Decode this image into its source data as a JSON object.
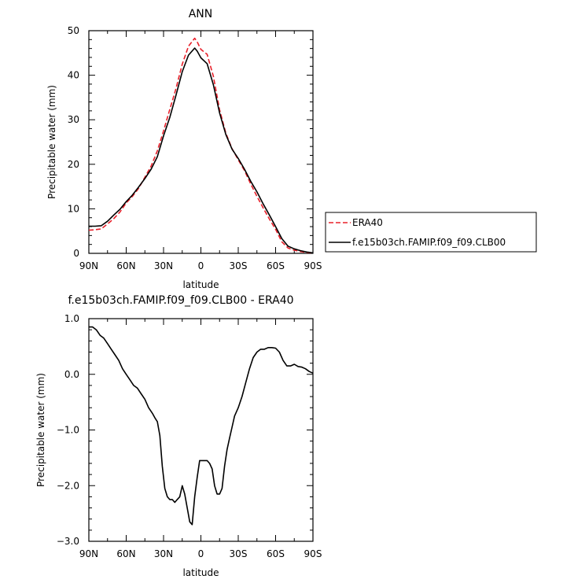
{
  "chart_data": [
    {
      "type": "line",
      "title": "ANN",
      "xlabel": "latitude",
      "ylabel": "Precipitable water (mm)",
      "xlim": [
        90,
        -90
      ],
      "ylim": [
        0,
        50
      ],
      "xticks": [
        90,
        60,
        30,
        0,
        -30,
        -60,
        -90
      ],
      "xtick_labels": [
        "90N",
        "60N",
        "30N",
        "0",
        "30S",
        "60S",
        "90S"
      ],
      "yticks": [
        0,
        10,
        20,
        30,
        40,
        50
      ],
      "ytick_labels": [
        "0",
        "10",
        "20",
        "30",
        "40",
        "50"
      ],
      "legend": {
        "position": "right"
      },
      "series": [
        {
          "name": "ERA40",
          "color": "#e8202a",
          "dash": "dashed",
          "x": [
            90,
            85,
            80,
            75,
            70,
            65,
            60,
            55,
            50,
            45,
            40,
            35,
            30,
            25,
            20,
            15,
            10,
            5,
            3,
            0,
            -5,
            -10,
            -15,
            -20,
            -25,
            -30,
            -35,
            -40,
            -45,
            -50,
            -55,
            -60,
            -65,
            -70,
            -75,
            -80,
            -85,
            -90
          ],
          "y": [
            5.2,
            5.3,
            5.5,
            6.6,
            7.8,
            9.3,
            11.3,
            12.8,
            14.6,
            17.1,
            19.6,
            23.0,
            27.5,
            32.3,
            37.0,
            42.5,
            46.5,
            48.3,
            47.5,
            45.8,
            44.7,
            39.8,
            32.2,
            27.0,
            23.5,
            21.0,
            18.6,
            15.6,
            12.8,
            10.2,
            7.7,
            5.4,
            2.6,
            1.2,
            0.7,
            0.4,
            0.2,
            0.1
          ]
        },
        {
          "name": "f.e15b03ch.FAMIP.f09_f09.CLB00",
          "color": "#000000",
          "dash": "solid",
          "x": [
            90,
            85,
            80,
            75,
            70,
            65,
            60,
            55,
            50,
            45,
            40,
            35,
            30,
            25,
            20,
            15,
            10,
            5,
            3,
            0,
            -5,
            -10,
            -15,
            -20,
            -25,
            -30,
            -35,
            -40,
            -45,
            -50,
            -55,
            -60,
            -65,
            -70,
            -75,
            -80,
            -85,
            -90
          ],
          "y": [
            6.1,
            6.1,
            6.2,
            7.2,
            8.6,
            9.9,
            11.6,
            13.1,
            14.9,
            16.8,
            18.9,
            21.7,
            26.4,
            30.5,
            35.5,
            40.8,
            44.5,
            46.1,
            45.4,
            43.9,
            42.6,
            37.9,
            31.5,
            26.7,
            23.4,
            21.3,
            18.9,
            16.2,
            13.8,
            11.1,
            8.6,
            6.0,
            3.3,
            1.6,
            1.0,
            0.6,
            0.3,
            0.1
          ]
        }
      ]
    },
    {
      "type": "line",
      "title": "f.e15b03ch.FAMIP.f09_f09.CLB00 - ERA40",
      "xlabel": "latitude",
      "ylabel": "Precipitable water (mm)",
      "xlim": [
        90,
        -90
      ],
      "ylim": [
        -3.0,
        1.0
      ],
      "xticks": [
        90,
        60,
        30,
        0,
        -30,
        -60,
        -90
      ],
      "xtick_labels": [
        "90N",
        "60N",
        "30N",
        "0",
        "30S",
        "60S",
        "90S"
      ],
      "yticks": [
        -3.0,
        -2.0,
        -1.0,
        0.0,
        1.0
      ],
      "ytick_labels": [
        "-3.0",
        "-2.0",
        "-1.0",
        "0.0",
        "1.0"
      ],
      "series": [
        {
          "color": "#000000",
          "dash": "solid",
          "x": [
            90,
            87,
            84,
            81,
            78,
            75,
            72,
            69,
            66,
            63,
            60,
            57,
            54,
            51,
            48,
            45,
            42,
            39,
            37,
            35,
            33,
            31,
            29,
            27,
            25,
            23,
            21,
            19,
            17,
            15,
            13,
            11,
            9,
            7,
            5,
            3,
            1,
            0,
            -3,
            -5,
            -7,
            -9,
            -11,
            -13,
            -15,
            -17,
            -19,
            -21,
            -23,
            -25,
            -27,
            -30,
            -33,
            -36,
            -39,
            -42,
            -45,
            -48,
            -51,
            -54,
            -57,
            -60,
            -63,
            -66,
            -69,
            -72,
            -75,
            -78,
            -81,
            -84,
            -87,
            -90
          ],
          "y": [
            0.85,
            0.85,
            0.8,
            0.7,
            0.65,
            0.55,
            0.45,
            0.35,
            0.25,
            0.1,
            0.0,
            -0.1,
            -0.2,
            -0.25,
            -0.35,
            -0.45,
            -0.6,
            -0.7,
            -0.78,
            -0.85,
            -1.1,
            -1.65,
            -2.05,
            -2.2,
            -2.25,
            -2.25,
            -2.3,
            -2.25,
            -2.2,
            -2.0,
            -2.15,
            -2.4,
            -2.65,
            -2.7,
            -2.2,
            -1.85,
            -1.55,
            -1.55,
            -1.55,
            -1.55,
            -1.6,
            -1.7,
            -2.0,
            -2.15,
            -2.15,
            -2.05,
            -1.65,
            -1.35,
            -1.15,
            -0.95,
            -0.75,
            -0.6,
            -0.4,
            -0.15,
            0.1,
            0.3,
            0.4,
            0.45,
            0.45,
            0.48,
            0.48,
            0.47,
            0.4,
            0.25,
            0.15,
            0.15,
            0.18,
            0.14,
            0.13,
            0.1,
            0.05,
            0.02
          ]
        }
      ]
    }
  ]
}
